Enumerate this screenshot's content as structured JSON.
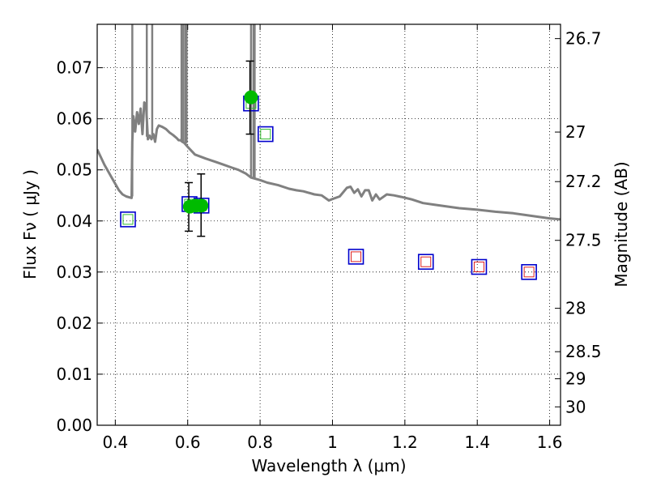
{
  "chart_data": {
    "type": "scatter",
    "xlabel": "Wavelength  λ (μm)",
    "ylabel": "Flux  Fν  ( μJy )",
    "y2label": "Magnitude (AB)",
    "xlim": [
      0.35,
      1.63
    ],
    "ylim": [
      0.0,
      0.0785
    ],
    "grid": true,
    "x_ticks": [
      0.4,
      0.6,
      0.8,
      1.0,
      1.2,
      1.4,
      1.6
    ],
    "x_tick_labels": [
      "0.4",
      "0.6",
      "0.8",
      "1",
      "1.2",
      "1.4",
      "1.6"
    ],
    "y_ticks": [
      0.0,
      0.01,
      0.02,
      0.03,
      0.04,
      0.05,
      0.06,
      0.07
    ],
    "y_tick_labels": [
      "0.00",
      "0.01",
      "0.02",
      "0.03",
      "0.04",
      "0.05",
      "0.06",
      "0.07"
    ],
    "y2_ticks": [
      {
        "label": "26.7",
        "flux": 0.0757
      },
      {
        "label": "27",
        "flux": 0.0574
      },
      {
        "label": "27.2",
        "flux": 0.0477
      },
      {
        "label": "27.5",
        "flux": 0.0362
      },
      {
        "label": "28",
        "flux": 0.0229
      },
      {
        "label": "28.5",
        "flux": 0.0144
      },
      {
        "label": "29",
        "flux": 0.0091
      },
      {
        "label": "30",
        "flux": 0.0036
      }
    ],
    "series": [
      {
        "type": "line",
        "color": "#808080",
        "x": [
          0.35,
          0.37,
          0.39,
          0.41,
          0.42,
          0.43,
          0.445,
          0.447,
          0.45,
          0.455,
          0.46,
          0.465,
          0.47,
          0.475,
          0.48,
          0.485,
          0.49,
          0.495,
          0.5,
          0.505,
          0.51,
          0.515,
          0.52,
          0.53,
          0.54,
          0.55,
          0.56,
          0.57,
          0.575,
          0.58,
          0.585,
          0.59,
          0.6,
          0.62,
          0.65,
          0.68,
          0.7,
          0.72,
          0.74,
          0.76,
          0.775,
          0.79,
          0.8,
          0.82,
          0.85,
          0.88,
          0.9,
          0.92,
          0.95,
          0.97,
          0.99,
          1.0,
          1.02,
          1.04,
          1.05,
          1.06,
          1.07,
          1.08,
          1.09,
          1.1,
          1.11,
          1.12,
          1.13,
          1.15,
          1.17,
          1.19,
          1.22,
          1.25,
          1.28,
          1.3,
          1.35,
          1.4,
          1.45,
          1.5,
          1.55,
          1.6,
          1.63
        ],
        "y": [
          0.054,
          0.051,
          0.0485,
          0.046,
          0.0452,
          0.0448,
          0.0445,
          0.0555,
          0.0605,
          0.0575,
          0.0613,
          0.059,
          0.062,
          0.057,
          0.0632,
          0.0628,
          0.056,
          0.0567,
          0.056,
          0.057,
          0.0555,
          0.058,
          0.0587,
          0.0584,
          0.058,
          0.0573,
          0.0568,
          0.0562,
          0.0558,
          0.0558,
          0.0555,
          0.0553,
          0.0545,
          0.053,
          0.0522,
          0.0515,
          0.051,
          0.0505,
          0.05,
          0.0493,
          0.0485,
          0.0482,
          0.048,
          0.0475,
          0.047,
          0.0463,
          0.046,
          0.0458,
          0.0452,
          0.045,
          0.044,
          0.0443,
          0.0448,
          0.0465,
          0.0467,
          0.0455,
          0.0462,
          0.0448,
          0.046,
          0.046,
          0.044,
          0.0452,
          0.0442,
          0.0452,
          0.045,
          0.0447,
          0.0442,
          0.0435,
          0.0432,
          0.043,
          0.0425,
          0.0422,
          0.0418,
          0.0415,
          0.041,
          0.0405,
          0.0403
        ]
      },
      {
        "type": "emission-lines",
        "color": "#808080",
        "x": [
          0.447,
          0.487,
          0.502,
          0.583,
          0.588,
          0.594,
          0.597,
          0.775,
          0.782,
          0.785
        ],
        "y_base": [
          0.0448,
          0.0565,
          0.0563,
          0.0555,
          0.0555,
          0.0552,
          0.0552,
          0.0485,
          0.0483,
          0.0482
        ],
        "y_top": 0.0785
      },
      {
        "type": "open-square",
        "edgecolor": "#0000cc",
        "x": [
          0.435,
          0.605,
          0.638,
          0.775,
          0.815,
          1.065,
          1.258,
          1.405,
          1.543
        ],
        "y": [
          0.0403,
          0.0433,
          0.043,
          0.063,
          0.057,
          0.033,
          0.032,
          0.031,
          0.03
        ]
      },
      {
        "type": "inner-square",
        "edgecolor": [
          "#33bb33",
          "#33bb33",
          "#33bb33",
          "#33bb33",
          "#33bb33",
          "#dd2222",
          "#dd2222",
          "#dd2222",
          "#dd2222"
        ],
        "x": [
          0.435,
          0.605,
          0.638,
          0.775,
          0.815,
          1.065,
          1.258,
          1.405,
          1.543
        ],
        "y": [
          0.0403,
          0.0433,
          0.043,
          0.063,
          0.057,
          0.033,
          0.032,
          0.031,
          0.03
        ]
      },
      {
        "type": "filled-circle-errorbar",
        "color": "#00bb00",
        "x": [
          0.606,
          0.622,
          0.638,
          0.775
        ],
        "y": [
          0.0428,
          0.043,
          0.043,
          0.0642
        ],
        "yerr_low": [
          0.038,
          null,
          0.037,
          0.057
        ],
        "yerr_high": [
          0.0475,
          null,
          0.0492,
          0.0713
        ],
        "err_x": [
          0.603,
          null,
          0.637,
          0.772
        ]
      }
    ]
  }
}
